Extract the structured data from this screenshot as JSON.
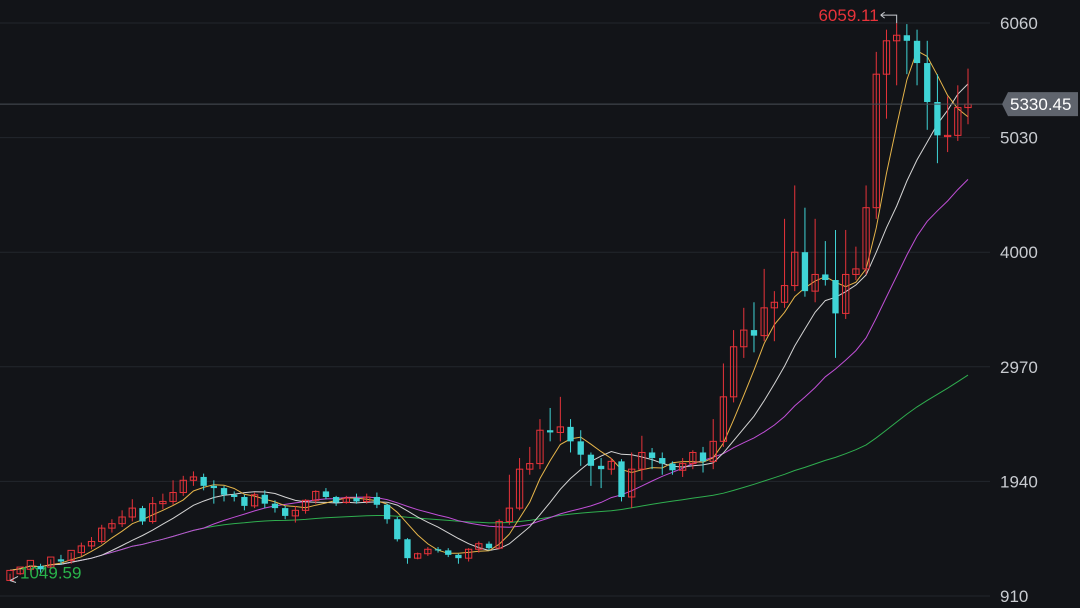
{
  "chart_data": {
    "type": "candlestick",
    "colors": {
      "up": "#e8333a",
      "down": "#3fd4d6",
      "ma5": "#e6b54a",
      "ma10": "#d4d4d4",
      "ma20": "#c04fd6",
      "ma60": "#2fae4f",
      "background": "#121418",
      "grid": "#23262c"
    },
    "y_axis": {
      "ylim": [
        910,
        6060
      ],
      "ticks": [
        "6060",
        "5030",
        "4000",
        "2970",
        "1940",
        "910"
      ]
    },
    "current_price": "5330.45",
    "high_label": "6059.11",
    "low_label": "1049.59",
    "ohlc": [
      [
        1050,
        1140,
        1049.59,
        1110
      ],
      [
        1110,
        1170,
        1100,
        1150
      ],
      [
        1150,
        1230,
        1130,
        1180
      ],
      [
        1180,
        1150,
        1120,
        1200
      ],
      [
        1170,
        1260,
        1160,
        1240
      ],
      [
        1240,
        1220,
        1190,
        1280
      ],
      [
        1230,
        1320,
        1200,
        1300
      ],
      [
        1300,
        1360,
        1270,
        1390
      ],
      [
        1360,
        1400,
        1330,
        1440
      ],
      [
        1400,
        1520,
        1380,
        1550
      ],
      [
        1520,
        1560,
        1480,
        1600
      ],
      [
        1560,
        1620,
        1530,
        1680
      ],
      [
        1620,
        1700,
        1580,
        1780
      ],
      [
        1700,
        1580,
        1550,
        1720
      ],
      [
        1580,
        1740,
        1560,
        1800
      ],
      [
        1740,
        1760,
        1690,
        1830
      ],
      [
        1760,
        1840,
        1730,
        1950
      ],
      [
        1840,
        1950,
        1810,
        1990
      ],
      [
        1950,
        1980,
        1900,
        2030
      ],
      [
        1980,
        1900,
        1860,
        2010
      ],
      [
        1900,
        1880,
        1740,
        1950
      ],
      [
        1880,
        1820,
        1760,
        1900
      ],
      [
        1820,
        1800,
        1760,
        1850
      ],
      [
        1800,
        1720,
        1680,
        1820
      ],
      [
        1720,
        1820,
        1700,
        1840
      ],
      [
        1820,
        1740,
        1700,
        1860
      ],
      [
        1740,
        1700,
        1660,
        1770
      ],
      [
        1700,
        1630,
        1600,
        1720
      ],
      [
        1630,
        1680,
        1570,
        1720
      ],
      [
        1680,
        1770,
        1650,
        1780
      ],
      [
        1770,
        1850,
        1740,
        1860
      ],
      [
        1850,
        1800,
        1780,
        1880
      ],
      [
        1800,
        1750,
        1720,
        1810
      ],
      [
        1750,
        1790,
        1740,
        1810
      ],
      [
        1790,
        1760,
        1740,
        1830
      ],
      [
        1760,
        1800,
        1740,
        1830
      ],
      [
        1800,
        1730,
        1700,
        1840
      ],
      [
        1730,
        1600,
        1560,
        1740
      ],
      [
        1600,
        1420,
        1400,
        1620
      ],
      [
        1420,
        1250,
        1200,
        1430
      ],
      [
        1250,
        1290,
        1240,
        1300
      ],
      [
        1290,
        1330,
        1270,
        1350
      ],
      [
        1330,
        1320,
        1300,
        1350
      ],
      [
        1320,
        1280,
        1260,
        1340
      ],
      [
        1280,
        1250,
        1200,
        1290
      ],
      [
        1250,
        1330,
        1220,
        1340
      ],
      [
        1330,
        1380,
        1300,
        1400
      ],
      [
        1380,
        1340,
        1320,
        1400
      ],
      [
        1340,
        1580,
        1330,
        1600
      ],
      [
        1580,
        1700,
        1550,
        2000
      ],
      [
        1700,
        2050,
        1680,
        2150
      ],
      [
        2050,
        2100,
        2000,
        2250
      ],
      [
        2100,
        2400,
        2050,
        2500
      ],
      [
        2400,
        2380,
        2300,
        2600
      ],
      [
        2380,
        2430,
        2300,
        2700
      ],
      [
        2430,
        2300,
        2200,
        2500
      ],
      [
        2300,
        2180,
        2080,
        2400
      ],
      [
        2180,
        2080,
        1900,
        2200
      ],
      [
        2080,
        2050,
        1880,
        2150
      ],
      [
        2050,
        2120,
        2000,
        2150
      ],
      [
        2120,
        1800,
        1760,
        2140
      ],
      [
        1800,
        2050,
        1700,
        2200
      ],
      [
        2050,
        2200,
        1950,
        2350
      ],
      [
        2200,
        2150,
        2050,
        2240
      ],
      [
        2150,
        2100,
        2000,
        2200
      ],
      [
        2100,
        2040,
        2000,
        2120
      ],
      [
        2040,
        2100,
        1980,
        2150
      ],
      [
        2100,
        2200,
        2050,
        2220
      ],
      [
        2200,
        2120,
        2020,
        2250
      ],
      [
        2120,
        2300,
        2050,
        2500
      ],
      [
        2300,
        2700,
        2250,
        3000
      ],
      [
        2700,
        3150,
        2650,
        3300
      ],
      [
        3150,
        3300,
        3050,
        3500
      ],
      [
        3300,
        3250,
        3100,
        3550
      ],
      [
        3250,
        3500,
        3200,
        3850
      ],
      [
        3500,
        3550,
        3200,
        3650
      ],
      [
        3550,
        3700,
        3500,
        4300
      ],
      [
        3700,
        4000,
        3650,
        4600
      ],
      [
        4000,
        3650,
        3600,
        4400
      ],
      [
        3650,
        3800,
        3550,
        4300
      ],
      [
        3800,
        3750,
        3700,
        4100
      ],
      [
        3750,
        3450,
        3050,
        4200
      ],
      [
        3450,
        3800,
        3400,
        4200
      ],
      [
        3800,
        3850,
        3750,
        4050
      ],
      [
        3850,
        4400,
        3800,
        4600
      ],
      [
        4400,
        5600,
        4300,
        5800
      ],
      [
        5600,
        5900,
        5200,
        6000
      ],
      [
        5900,
        5950,
        5500,
        6059.11
      ],
      [
        5950,
        5900,
        5600,
        6050
      ],
      [
        5900,
        5700,
        5500,
        6000
      ],
      [
        5700,
        5350,
        5100,
        5900
      ],
      [
        5350,
        5050,
        4800,
        5600
      ],
      [
        5050,
        5050,
        4900,
        5400
      ],
      [
        5050,
        5300,
        5000,
        5500
      ],
      [
        5300,
        5330.45,
        5150,
        5650
      ]
    ]
  }
}
